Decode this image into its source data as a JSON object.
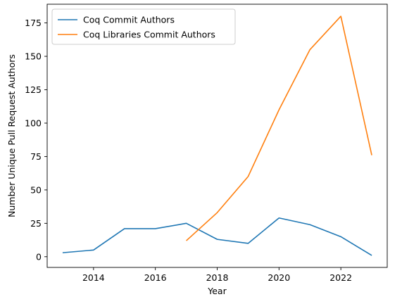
{
  "chart_data": {
    "type": "line",
    "xlabel": "Year",
    "ylabel": "Number Unique Pull Request Authors",
    "xlim": [
      2012.5,
      2023.5
    ],
    "ylim": [
      -8,
      189
    ],
    "xticks": [
      2014,
      2016,
      2018,
      2020,
      2022
    ],
    "yticks": [
      0,
      25,
      50,
      75,
      100,
      125,
      150,
      175
    ],
    "grid": false,
    "legend_position": "top-left",
    "series": [
      {
        "name": "Coq Commit Authors",
        "color": "#1f77b4",
        "x": [
          2013,
          2014,
          2015,
          2016,
          2017,
          2018,
          2019,
          2020,
          2021,
          2022,
          2023
        ],
        "y": [
          3,
          5,
          21,
          21,
          25,
          13,
          10,
          29,
          24,
          15,
          1
        ]
      },
      {
        "name": "Coq Libraries Commit Authors",
        "color": "#ff7f0e",
        "x": [
          2017,
          2018,
          2019,
          2020,
          2021,
          2022,
          2023
        ],
        "y": [
          12,
          33,
          60,
          110,
          155,
          180,
          76
        ]
      }
    ]
  }
}
